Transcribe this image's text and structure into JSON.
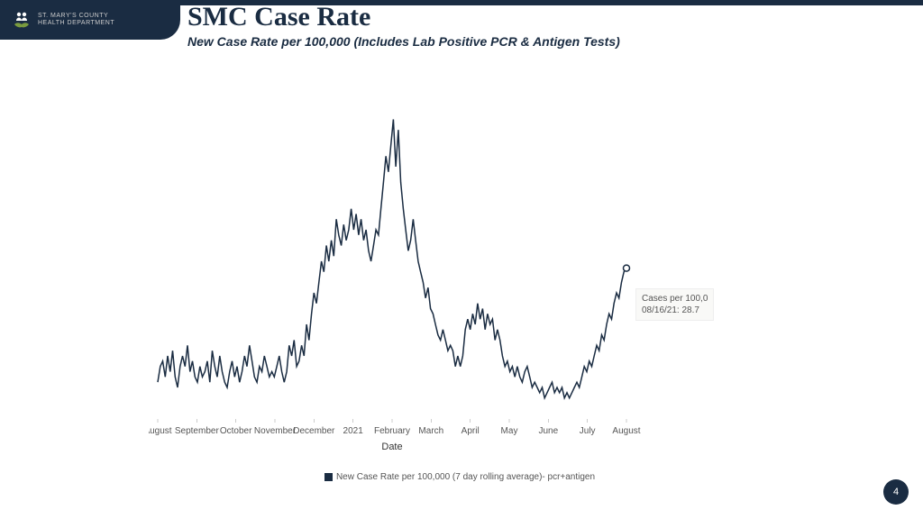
{
  "header": {
    "org_line1": "ST. MARY'S COUNTY",
    "org_line2": "HEALTH DEPARTMENT"
  },
  "title": "SMC Case Rate",
  "subtitle": "New Case Rate per 100,000 (Includes Lab Positive PCR & Antigen Tests)",
  "chart": {
    "type": "line",
    "xlabel": "Date",
    "xticks": [
      "August",
      "September",
      "October",
      "November",
      "December",
      "2021",
      "February",
      "March",
      "April",
      "May",
      "June",
      "July",
      "August"
    ],
    "ylim": [
      0,
      60
    ],
    "line_color": "#1a2c42",
    "line_width": 1.5,
    "background_color": "#ffffff",
    "marker_stroke": "#1a2c42",
    "marker_fill": "#ffffff",
    "label_fontsize": 10,
    "series": [
      7,
      10,
      11,
      8,
      12,
      9,
      13,
      8,
      6,
      10,
      12,
      10,
      14,
      9,
      11,
      8,
      7,
      10,
      8,
      9,
      11,
      7,
      13,
      10,
      8,
      12,
      9,
      7,
      6,
      9,
      11,
      8,
      10,
      7,
      9,
      12,
      10,
      14,
      11,
      8,
      7,
      10,
      9,
      12,
      10,
      8,
      9,
      8,
      10,
      12,
      9,
      7,
      9,
      14,
      12,
      15,
      10,
      11,
      14,
      12,
      18,
      15,
      20,
      24,
      22,
      26,
      30,
      28,
      33,
      30,
      34,
      31,
      38,
      35,
      33,
      37,
      34,
      36,
      40,
      36,
      39,
      35,
      38,
      34,
      36,
      32,
      30,
      33,
      36,
      35,
      40,
      45,
      50,
      47,
      52,
      57,
      48,
      55,
      45,
      40,
      36,
      32,
      34,
      38,
      34,
      30,
      28,
      26,
      23,
      25,
      21,
      20,
      18,
      16,
      15,
      17,
      15,
      13,
      14,
      13,
      10,
      12,
      10,
      12,
      17,
      19,
      17,
      20,
      18,
      22,
      19,
      21,
      17,
      20,
      18,
      19,
      15,
      17,
      15,
      12,
      10,
      11,
      9,
      10,
      8,
      10,
      8,
      7,
      9,
      10,
      8,
      6,
      7,
      6,
      5,
      6,
      4,
      5,
      6,
      7,
      5,
      6,
      5,
      6,
      4,
      5,
      4,
      5,
      6,
      7,
      6,
      8,
      10,
      9,
      11,
      10,
      12,
      14,
      13,
      16,
      15,
      18,
      20,
      19,
      22,
      24,
      23,
      26,
      28,
      28.7
    ],
    "tooltip": {
      "line1": "Cases per 100,0",
      "line2": "08/16/21: 28.7"
    }
  },
  "legend_label": "New Case Rate per 100,000 (7 day rolling average)- pcr+antigen",
  "page_number": "4"
}
